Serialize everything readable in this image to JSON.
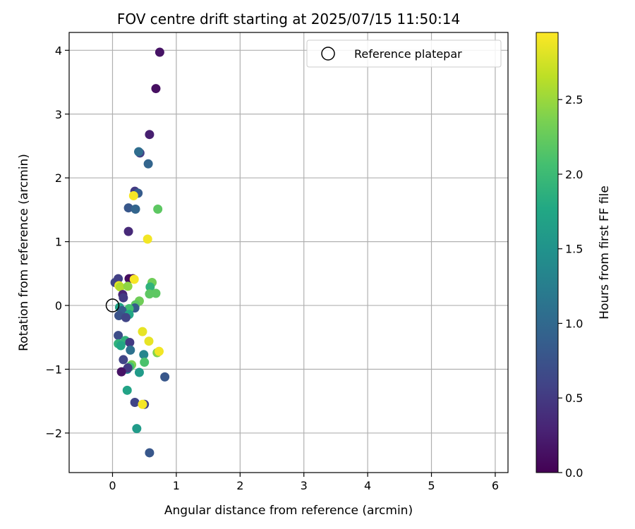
{
  "chart_data": {
    "type": "scatter",
    "title": "FOV centre drift starting at 2025/07/15 11:50:14",
    "xlabel": "Angular distance from reference (arcmin)",
    "ylabel": "Rotation from reference (arcmin)",
    "xlim": [
      -0.68,
      6.2
    ],
    "ylim": [
      -2.62,
      4.28
    ],
    "xticks": [
      0,
      1,
      2,
      3,
      4,
      5,
      6
    ],
    "yticks": [
      -2,
      -1,
      0,
      1,
      2,
      3,
      4
    ],
    "grid": true,
    "legend": {
      "position": "top-right",
      "entries": [
        "Reference platepar"
      ]
    },
    "reference_point": {
      "x": 0,
      "y": 0,
      "label": "Reference platepar"
    },
    "colorbar": {
      "label": "Hours from first FF file",
      "colormap": "viridis",
      "range": [
        0,
        2.95
      ],
      "ticks": [
        "0.0",
        "0.5",
        "1.0",
        "1.5",
        "2.0",
        "2.5"
      ]
    },
    "points": [
      {
        "x": 0.74,
        "y": 3.97,
        "h": 0.15
      },
      {
        "x": 0.68,
        "y": 3.4,
        "h": 0.12
      },
      {
        "x": 0.58,
        "y": 2.68,
        "h": 0.25
      },
      {
        "x": 0.43,
        "y": 2.39,
        "h": 0.55
      },
      {
        "x": 0.41,
        "y": 2.41,
        "h": 1.05
      },
      {
        "x": 0.56,
        "y": 2.22,
        "h": 0.95
      },
      {
        "x": 0.35,
        "y": 1.79,
        "h": 0.5
      },
      {
        "x": 0.4,
        "y": 1.76,
        "h": 0.85
      },
      {
        "x": 0.33,
        "y": 1.72,
        "h": 2.92
      },
      {
        "x": 0.25,
        "y": 1.53,
        "h": 0.8
      },
      {
        "x": 0.36,
        "y": 1.51,
        "h": 0.95
      },
      {
        "x": 0.71,
        "y": 1.51,
        "h": 2.2
      },
      {
        "x": 0.25,
        "y": 1.16,
        "h": 0.35
      },
      {
        "x": 0.55,
        "y": 1.04,
        "h": 2.9
      },
      {
        "x": 0.04,
        "y": 0.36,
        "h": 0.6
      },
      {
        "x": 0.09,
        "y": 0.42,
        "h": 0.55
      },
      {
        "x": 0.26,
        "y": 0.42,
        "h": 0.1
      },
      {
        "x": 0.32,
        "y": 0.42,
        "h": 0.05
      },
      {
        "x": 0.34,
        "y": 0.41,
        "h": 2.92
      },
      {
        "x": 0.1,
        "y": 0.31,
        "h": 2.85
      },
      {
        "x": 0.12,
        "y": 0.29,
        "h": 2.6
      },
      {
        "x": 0.24,
        "y": 0.3,
        "h": 2.45
      },
      {
        "x": 0.62,
        "y": 0.36,
        "h": 2.3
      },
      {
        "x": 0.59,
        "y": 0.29,
        "h": 1.9
      },
      {
        "x": 0.58,
        "y": 0.18,
        "h": 2.2
      },
      {
        "x": 0.68,
        "y": 0.19,
        "h": 2.2
      },
      {
        "x": 0.16,
        "y": 0.17,
        "h": 0.3
      },
      {
        "x": 0.17,
        "y": 0.12,
        "h": 0.5
      },
      {
        "x": 0.42,
        "y": 0.07,
        "h": 2.3
      },
      {
        "x": 0.36,
        "y": 0.01,
        "h": 2.2
      },
      {
        "x": 0.35,
        "y": -0.04,
        "h": 0.85
      },
      {
        "x": 0.11,
        "y": -0.03,
        "h": 1.7
      },
      {
        "x": 0.26,
        "y": -0.05,
        "h": 2.05
      },
      {
        "x": 0.15,
        "y": -0.08,
        "h": 0.85
      },
      {
        "x": 0.26,
        "y": -0.14,
        "h": 1.75
      },
      {
        "x": 0.1,
        "y": -0.16,
        "h": 0.75
      },
      {
        "x": 0.21,
        "y": -0.19,
        "h": 0.6
      },
      {
        "x": 0.47,
        "y": -0.41,
        "h": 2.85
      },
      {
        "x": 0.09,
        "y": -0.47,
        "h": 0.7
      },
      {
        "x": 0.2,
        "y": -0.55,
        "h": 1.9
      },
      {
        "x": 0.57,
        "y": -0.56,
        "h": 2.85
      },
      {
        "x": 0.27,
        "y": -0.58,
        "h": 0.5
      },
      {
        "x": 0.09,
        "y": -0.6,
        "h": 1.9
      },
      {
        "x": 0.13,
        "y": -0.63,
        "h": 1.75
      },
      {
        "x": 0.28,
        "y": -0.7,
        "h": 1.1
      },
      {
        "x": 0.7,
        "y": -0.74,
        "h": 2.4
      },
      {
        "x": 0.73,
        "y": -0.72,
        "h": 2.9
      },
      {
        "x": 0.49,
        "y": -0.77,
        "h": 1.35
      },
      {
        "x": 0.17,
        "y": -0.85,
        "h": 0.6
      },
      {
        "x": 0.5,
        "y": -0.89,
        "h": 2.1
      },
      {
        "x": 0.3,
        "y": -0.93,
        "h": 2.35
      },
      {
        "x": 0.27,
        "y": -0.96,
        "h": 2.05
      },
      {
        "x": 0.23,
        "y": -1.0,
        "h": 1.3
      },
      {
        "x": 0.24,
        "y": -0.98,
        "h": 0.5
      },
      {
        "x": 0.14,
        "y": -1.04,
        "h": 0.15
      },
      {
        "x": 0.42,
        "y": -1.05,
        "h": 1.6
      },
      {
        "x": 0.82,
        "y": -1.12,
        "h": 0.8
      },
      {
        "x": 0.23,
        "y": -1.33,
        "h": 1.7
      },
      {
        "x": 0.35,
        "y": -1.52,
        "h": 0.6
      },
      {
        "x": 0.5,
        "y": -1.55,
        "h": 0.55
      },
      {
        "x": 0.47,
        "y": -1.55,
        "h": 2.92
      },
      {
        "x": 0.38,
        "y": -1.93,
        "h": 1.6
      },
      {
        "x": 0.58,
        "y": -2.31,
        "h": 0.8
      }
    ]
  }
}
